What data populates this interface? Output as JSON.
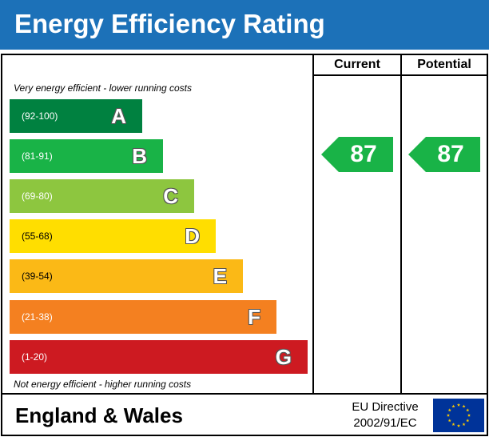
{
  "header": {
    "title": "Energy Efficiency Rating",
    "bg_color": "#1c71b8"
  },
  "columns": {
    "current": "Current",
    "potential": "Potential"
  },
  "notes": {
    "top": "Very energy efficient - lower running costs",
    "bottom": "Not energy efficient - higher running costs"
  },
  "bands": [
    {
      "range": "(92-100)",
      "letter": "A",
      "color": "#008140"
    },
    {
      "range": "(81-91)",
      "letter": "B",
      "color": "#19b347"
    },
    {
      "range": "(69-80)",
      "letter": "C",
      "color": "#8dc63f"
    },
    {
      "range": "(55-68)",
      "letter": "D",
      "color": "#ffde00"
    },
    {
      "range": "(39-54)",
      "letter": "E",
      "color": "#fbb916"
    },
    {
      "range": "(21-38)",
      "letter": "F",
      "color": "#f48020"
    },
    {
      "range": "(1-20)",
      "letter": "G",
      "color": "#cd1a21"
    }
  ],
  "ratings": {
    "current": {
      "value": "87",
      "color": "#19b347"
    },
    "potential": {
      "value": "87",
      "color": "#19b347"
    }
  },
  "footer": {
    "region": "England & Wales",
    "directive_line1": "EU Directive",
    "directive_line2": "2002/91/EC",
    "flag_icon": "eu-flag-icon"
  }
}
